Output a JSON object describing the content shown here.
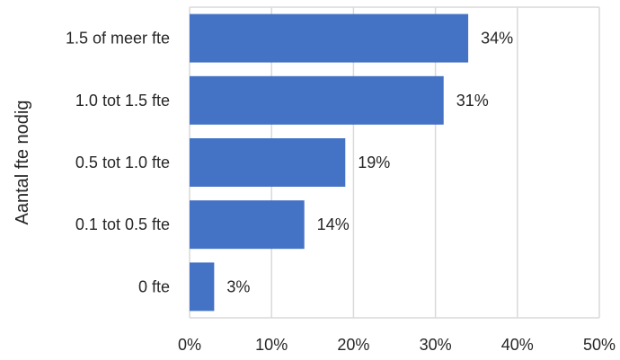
{
  "chart_data": {
    "type": "bar",
    "orientation": "horizontal",
    "categories": [
      "1.5 of meer fte",
      "1.0 tot 1.5 fte",
      "0.5 tot 1.0 fte",
      "0.1 tot 0.5 fte",
      "0 fte"
    ],
    "values": [
      34,
      31,
      19,
      14,
      3
    ],
    "data_labels": [
      "34%",
      "31%",
      "19%",
      "14%",
      "3%"
    ],
    "ylabel": "Aantal fte nodig",
    "xlabel": "",
    "xlim": [
      0,
      50
    ],
    "x_ticks": [
      0,
      10,
      20,
      30,
      40,
      50
    ],
    "x_tick_labels": [
      "0%",
      "10%",
      "20%",
      "30%",
      "40%",
      "50%"
    ],
    "grid": "vertical",
    "bar_color": "#4472C4",
    "grid_color": "#D9D9D9"
  }
}
